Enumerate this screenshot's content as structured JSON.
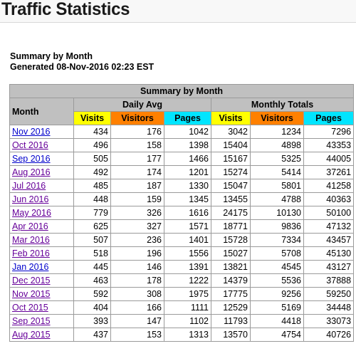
{
  "page": {
    "title": "Traffic Statistics"
  },
  "summary": {
    "heading": "Summary by Month",
    "generated": "Generated 08-Nov-2016 02:23 EST"
  },
  "table": {
    "caption": "Summary by Month",
    "month_header": "Month",
    "daily_avg_header": "Daily Avg",
    "monthly_totals_header": "Monthly Totals",
    "col_visits": "Visits",
    "col_visitors": "Visitors",
    "col_pages": "Pages",
    "colors": {
      "header_gray": "#c0c0c0",
      "visits": "#ffff00",
      "visitors": "#ff8000",
      "pages": "#00e5ff",
      "link": "#0000cc",
      "visited_link": "#660099"
    },
    "rows": [
      {
        "month": "Nov 2016",
        "visited": false,
        "d_visits": "434",
        "d_visitors": "176",
        "d_pages": "1042",
        "m_visits": "3042",
        "m_visitors": "1234",
        "m_pages": "7296"
      },
      {
        "month": "Oct 2016",
        "visited": true,
        "d_visits": "496",
        "d_visitors": "158",
        "d_pages": "1398",
        "m_visits": "15404",
        "m_visitors": "4898",
        "m_pages": "43353"
      },
      {
        "month": "Sep 2016",
        "visited": false,
        "d_visits": "505",
        "d_visitors": "177",
        "d_pages": "1466",
        "m_visits": "15167",
        "m_visitors": "5325",
        "m_pages": "44005"
      },
      {
        "month": "Aug 2016",
        "visited": true,
        "d_visits": "492",
        "d_visitors": "174",
        "d_pages": "1201",
        "m_visits": "15274",
        "m_visitors": "5414",
        "m_pages": "37261"
      },
      {
        "month": "Jul 2016",
        "visited": true,
        "d_visits": "485",
        "d_visitors": "187",
        "d_pages": "1330",
        "m_visits": "15047",
        "m_visitors": "5801",
        "m_pages": "41258"
      },
      {
        "month": "Jun 2016",
        "visited": true,
        "d_visits": "448",
        "d_visitors": "159",
        "d_pages": "1345",
        "m_visits": "13455",
        "m_visitors": "4788",
        "m_pages": "40363"
      },
      {
        "month": "May 2016",
        "visited": true,
        "d_visits": "779",
        "d_visitors": "326",
        "d_pages": "1616",
        "m_visits": "24175",
        "m_visitors": "10130",
        "m_pages": "50100"
      },
      {
        "month": "Apr 2016",
        "visited": true,
        "d_visits": "625",
        "d_visitors": "327",
        "d_pages": "1571",
        "m_visits": "18771",
        "m_visitors": "9836",
        "m_pages": "47132"
      },
      {
        "month": "Mar 2016",
        "visited": true,
        "d_visits": "507",
        "d_visitors": "236",
        "d_pages": "1401",
        "m_visits": "15728",
        "m_visitors": "7334",
        "m_pages": "43457"
      },
      {
        "month": "Feb 2016",
        "visited": true,
        "d_visits": "518",
        "d_visitors": "196",
        "d_pages": "1556",
        "m_visits": "15027",
        "m_visitors": "5708",
        "m_pages": "45130"
      },
      {
        "month": "Jan 2016",
        "visited": false,
        "d_visits": "445",
        "d_visitors": "146",
        "d_pages": "1391",
        "m_visits": "13821",
        "m_visitors": "4545",
        "m_pages": "43127"
      },
      {
        "month": "Dec 2015",
        "visited": true,
        "d_visits": "463",
        "d_visitors": "178",
        "d_pages": "1222",
        "m_visits": "14379",
        "m_visitors": "5536",
        "m_pages": "37888"
      },
      {
        "month": "Nov 2015",
        "visited": true,
        "d_visits": "592",
        "d_visitors": "308",
        "d_pages": "1975",
        "m_visits": "17775",
        "m_visitors": "9256",
        "m_pages": "59250"
      },
      {
        "month": "Oct 2015",
        "visited": true,
        "d_visits": "404",
        "d_visitors": "166",
        "d_pages": "1111",
        "m_visits": "12529",
        "m_visitors": "5169",
        "m_pages": "34448"
      },
      {
        "month": "Sep 2015",
        "visited": true,
        "d_visits": "393",
        "d_visitors": "147",
        "d_pages": "1102",
        "m_visits": "11793",
        "m_visitors": "4418",
        "m_pages": "33073"
      },
      {
        "month": "Aug 2015",
        "visited": true,
        "d_visits": "437",
        "d_visitors": "153",
        "d_pages": "1313",
        "m_visits": "13570",
        "m_visitors": "4754",
        "m_pages": "40726"
      }
    ]
  }
}
